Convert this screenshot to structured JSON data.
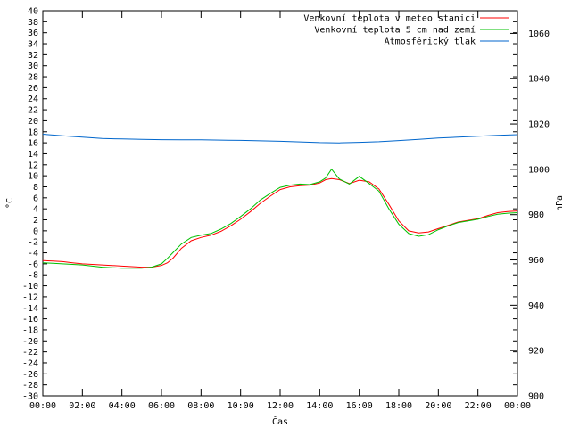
{
  "chart_data": {
    "type": "line",
    "title": "",
    "xlabel": "Čas",
    "ylabel": "°C",
    "y2label": "hPa",
    "xticks": [
      "00:00",
      "02:00",
      "04:00",
      "06:00",
      "08:00",
      "10:00",
      "12:00",
      "14:00",
      "16:00",
      "18:00",
      "20:00",
      "22:00",
      "00:00"
    ],
    "xlim_hours": [
      0,
      24
    ],
    "ylim": [
      -30,
      40
    ],
    "y2lim": [
      900,
      1070
    ],
    "yticks": [
      -30,
      -28,
      -26,
      -24,
      -22,
      -20,
      -18,
      -16,
      -14,
      -12,
      -10,
      -8,
      -6,
      -4,
      -2,
      0,
      2,
      4,
      6,
      8,
      10,
      12,
      14,
      16,
      18,
      20,
      22,
      24,
      26,
      28,
      30,
      32,
      34,
      36,
      38,
      40
    ],
    "y2ticks": [
      900,
      920,
      940,
      960,
      980,
      1000,
      1020,
      1040,
      1060
    ],
    "grid": false,
    "legend_position": "top-right",
    "series": [
      {
        "name": "Venkovní teplota v meteo stanici",
        "color": "#ff0000",
        "axis": "left",
        "x": [
          0,
          0.5,
          1,
          1.5,
          2,
          2.5,
          3,
          3.5,
          4,
          4.5,
          5,
          5.5,
          6,
          6.3,
          6.6,
          7,
          7.5,
          8,
          8.5,
          9,
          9.5,
          10,
          10.5,
          11,
          11.5,
          12,
          12.5,
          13,
          13.5,
          14,
          14.3,
          14.6,
          15,
          15.5,
          16,
          16.5,
          17,
          17.5,
          18,
          18.5,
          19,
          19.5,
          20,
          20.5,
          21,
          21.5,
          22,
          22.5,
          23,
          23.5,
          24
        ],
        "values": [
          -5.4,
          -5.5,
          -5.6,
          -5.8,
          -6.0,
          -6.1,
          -6.2,
          -6.3,
          -6.4,
          -6.5,
          -6.6,
          -6.6,
          -6.3,
          -5.8,
          -4.9,
          -3.2,
          -1.8,
          -1.2,
          -0.8,
          -0.1,
          0.9,
          2.1,
          3.5,
          5.0,
          6.3,
          7.5,
          8.0,
          8.2,
          8.3,
          8.7,
          9.3,
          9.5,
          9.3,
          8.6,
          9.2,
          8.9,
          7.6,
          4.8,
          1.8,
          0.0,
          -0.4,
          -0.2,
          0.4,
          1.0,
          1.6,
          1.9,
          2.2,
          2.8,
          3.3,
          3.5,
          3.6
        ]
      },
      {
        "name": "Venkovní teplota 5 cm nad zemí",
        "color": "#00c000",
        "axis": "left",
        "x": [
          0,
          0.5,
          1,
          1.5,
          2,
          2.5,
          3,
          3.5,
          4,
          4.5,
          5,
          5.5,
          6,
          6.3,
          6.6,
          7,
          7.5,
          8,
          8.5,
          9,
          9.5,
          10,
          10.5,
          11,
          11.5,
          12,
          12.5,
          13,
          13.5,
          14,
          14.3,
          14.6,
          15,
          15.5,
          16,
          16.5,
          17,
          17.5,
          18,
          18.5,
          19,
          19.5,
          20,
          20.5,
          21,
          21.5,
          22,
          22.5,
          23,
          23.5,
          24
        ],
        "values": [
          -5.8,
          -5.9,
          -6.0,
          -6.1,
          -6.2,
          -6.4,
          -6.6,
          -6.7,
          -6.8,
          -6.8,
          -6.8,
          -6.6,
          -6.0,
          -5.0,
          -3.9,
          -2.4,
          -1.2,
          -0.8,
          -0.5,
          0.3,
          1.3,
          2.6,
          4.0,
          5.6,
          6.8,
          7.9,
          8.3,
          8.5,
          8.4,
          8.9,
          9.6,
          11.2,
          9.4,
          8.5,
          9.9,
          8.6,
          7.2,
          4.0,
          1.2,
          -0.5,
          -1.0,
          -0.7,
          0.2,
          0.9,
          1.5,
          1.8,
          2.1,
          2.6,
          3.0,
          3.2,
          3.3
        ]
      },
      {
        "name": "Atmosférický tlak",
        "color": "#0066cc",
        "axis": "right",
        "x": [
          0,
          1,
          2,
          3,
          4,
          5,
          6,
          7,
          8,
          9,
          10,
          11,
          12,
          13,
          14,
          15,
          16,
          17,
          18,
          19,
          20,
          21,
          22,
          23,
          24
        ],
        "values": [
          1015.5,
          1014.8,
          1014.2,
          1013.6,
          1013.4,
          1013.2,
          1013.1,
          1013.0,
          1013.0,
          1012.9,
          1012.8,
          1012.6,
          1012.4,
          1012.1,
          1011.8,
          1011.7,
          1011.9,
          1012.2,
          1012.7,
          1013.2,
          1013.8,
          1014.2,
          1014.6,
          1015.0,
          1015.3
        ]
      }
    ]
  }
}
